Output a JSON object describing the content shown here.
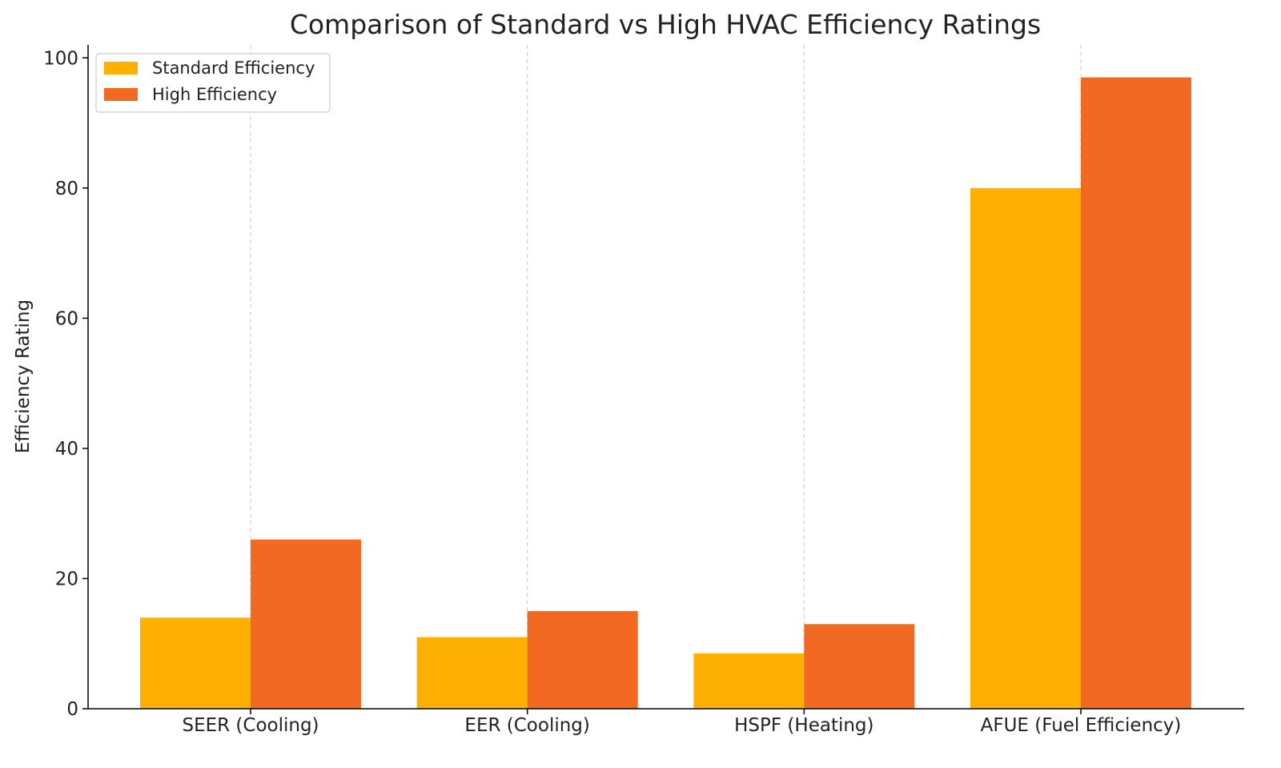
{
  "chart_data": {
    "type": "bar",
    "title": "Comparison of Standard vs High HVAC Efficiency Ratings",
    "xlabel": "",
    "ylabel": "Efficiency Rating",
    "categories": [
      "SEER (Cooling)",
      "EER (Cooling)",
      "HSPF (Heating)",
      "AFUE (Fuel Efficiency)"
    ],
    "series": [
      {
        "name": "Standard Efficiency",
        "values": [
          14,
          11,
          8.5,
          80
        ],
        "color": "#FDB002"
      },
      {
        "name": "High Efficiency",
        "values": [
          26,
          15,
          13,
          97
        ],
        "color": "#F26922"
      }
    ],
    "ylim": [
      0,
      102
    ],
    "yticks": [
      0,
      20,
      40,
      60,
      80,
      100
    ],
    "grid": {
      "x": true,
      "y": false,
      "style": "dashed"
    },
    "legend_position": "top-left"
  }
}
